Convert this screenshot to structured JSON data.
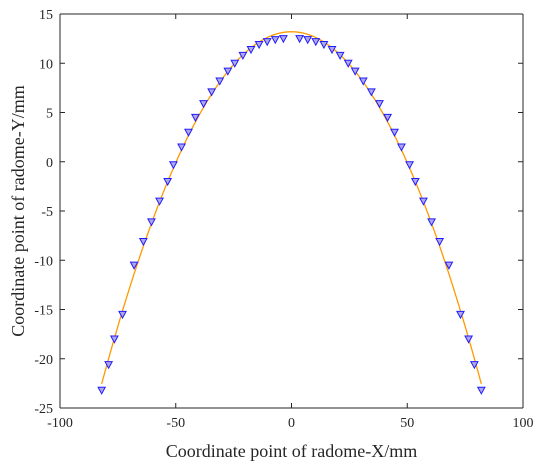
{
  "chart_data": {
    "type": "line",
    "xlabel": "Coordinate point of radome-X/mm",
    "ylabel": "Coordinate point of radome-Y/mm",
    "xlim": [
      -100,
      100
    ],
    "ylim": [
      -25,
      15
    ],
    "xticks": [
      -100,
      -50,
      0,
      50,
      100
    ],
    "yticks": [
      -25,
      -20,
      -15,
      -10,
      -5,
      0,
      5,
      10,
      15
    ],
    "grid": false,
    "legend": "none",
    "colors": {
      "curve": "#FF9900",
      "marker_fill": "#B3A6E6",
      "marker_stroke": "#1E1EFF",
      "axis": "#262626"
    },
    "series": [
      {
        "marker": "down-triangle",
        "x": [
          -82,
          -79,
          -76.5,
          -73,
          -68,
          -64,
          -60.5,
          -57,
          -53.5,
          -51,
          -47.5,
          -44.5,
          -41.5,
          -38,
          -34.5,
          -31,
          -27.5,
          -24.5,
          -21,
          -17.5,
          -14,
          -10.5,
          -7,
          -3.5,
          3.5,
          7,
          10.5,
          14,
          17.5,
          21,
          24.5,
          27.5,
          31,
          34.5,
          38,
          41.5,
          44.5,
          47.5,
          51,
          53.5,
          57,
          60.5,
          64,
          68,
          73,
          76.5,
          79,
          82
        ],
        "y": [
          -23.2,
          -20.6,
          -18,
          -15.5,
          -10.5,
          -8.1,
          -6.1,
          -4.0,
          -2.0,
          -0.3,
          1.5,
          3.0,
          4.5,
          5.9,
          7.1,
          8.2,
          9.2,
          10.0,
          10.8,
          11.4,
          11.9,
          12.2,
          12.4,
          12.5,
          12.5,
          12.4,
          12.2,
          11.9,
          11.4,
          10.8,
          10.0,
          9.2,
          8.2,
          7.1,
          5.9,
          4.5,
          3.0,
          1.5,
          -0.3,
          -2.0,
          -4.0,
          -6.1,
          -8.1,
          -10.5,
          -15.5,
          -18,
          -20.6,
          -23.2
        ]
      }
    ]
  }
}
